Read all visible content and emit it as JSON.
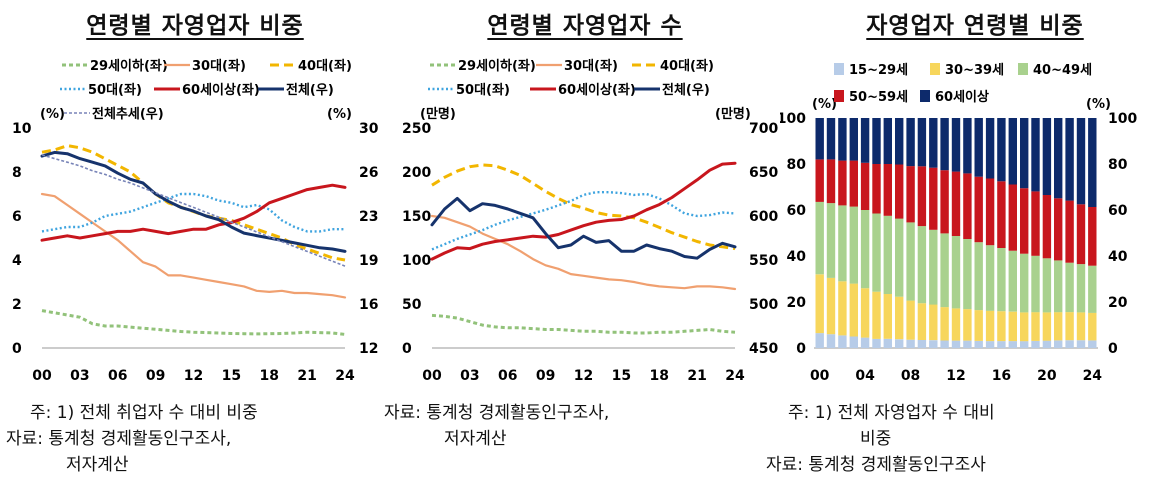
{
  "titles": [
    "연령별 자영업자 비중",
    "연령별 자영업자 수",
    "자영업자 연령별 비중"
  ],
  "notes": {
    "p1": [
      "주: 1) 전체 취업자 수 대비 비중",
      "자료: 통계청 경제활동인구조사,",
      "저자계산"
    ],
    "p2": [
      "자료: 통계청 경제활동인구조사,",
      "저자계산"
    ],
    "p3": [
      "주: 1) 전체 자영업자 수 대비",
      "비중",
      "자료: 통계청 경제활동인구조사"
    ]
  },
  "colors": {
    "a29": "#92c27a",
    "a30": "#f0a070",
    "a40": "#f2b600",
    "a50": "#3fa4df",
    "a60": "#c8161d",
    "total": "#16336c",
    "trend": "#7884b8",
    "s15": "#b7cce8",
    "s30": "#f7d65c",
    "s40": "#a9d18e",
    "s50": "#c8161d",
    "s60": "#0d2a6b"
  },
  "chart_data": [
    {
      "type": "line",
      "x": [
        0,
        1,
        2,
        3,
        4,
        5,
        6,
        7,
        8,
        9,
        10,
        11,
        12,
        13,
        14,
        15,
        16,
        17,
        18,
        19,
        20,
        21,
        22,
        23,
        24
      ],
      "xticks": [
        "00",
        "03",
        "06",
        "09",
        "12",
        "15",
        "18",
        "21",
        "24"
      ],
      "left_axis": {
        "unit": "(%)",
        "ylim": [
          0,
          10
        ],
        "ticks": [
          "0",
          "2",
          "4",
          "6",
          "8",
          "10"
        ]
      },
      "right_axis": {
        "unit": "(%)",
        "ylim": [
          12,
          30
        ],
        "ticks": [
          "12",
          "16",
          "19",
          "23",
          "26",
          "30"
        ]
      },
      "legend": [
        "29세이하(좌)",
        "30대(좌)",
        "40대(좌)",
        "50대(좌)",
        "60세이상(좌)",
        "전체(우)",
        "전체추세(우)"
      ],
      "series": [
        {
          "name": "29세이하(좌)",
          "axis": "left",
          "values": [
            1.7,
            1.6,
            1.5,
            1.4,
            1.1,
            1.0,
            1.0,
            0.95,
            0.9,
            0.85,
            0.8,
            0.75,
            0.72,
            0.7,
            0.68,
            0.66,
            0.65,
            0.64,
            0.65,
            0.66,
            0.68,
            0.72,
            0.7,
            0.68,
            0.62
          ]
        },
        {
          "name": "30대(좌)",
          "axis": "left",
          "values": [
            7.0,
            6.9,
            6.5,
            6.1,
            5.7,
            5.3,
            4.9,
            4.4,
            3.9,
            3.7,
            3.3,
            3.3,
            3.2,
            3.1,
            3.0,
            2.9,
            2.8,
            2.6,
            2.55,
            2.6,
            2.5,
            2.5,
            2.45,
            2.4,
            2.3
          ]
        },
        {
          "name": "40대(좌)",
          "axis": "left",
          "values": [
            8.9,
            9.0,
            9.2,
            9.1,
            8.9,
            8.6,
            8.3,
            8.0,
            7.5,
            7.0,
            6.6,
            6.4,
            6.2,
            6.0,
            5.9,
            5.8,
            5.6,
            5.4,
            5.2,
            5.0,
            4.7,
            4.5,
            4.3,
            4.1,
            4.0
          ]
        },
        {
          "name": "50대(좌)",
          "axis": "left",
          "values": [
            5.3,
            5.4,
            5.5,
            5.5,
            5.7,
            6.0,
            6.1,
            6.2,
            6.4,
            6.6,
            6.8,
            7.0,
            7.0,
            6.9,
            6.7,
            6.6,
            6.4,
            6.5,
            6.3,
            5.8,
            5.5,
            5.3,
            5.3,
            5.4,
            5.4
          ]
        },
        {
          "name": "60세이상(좌)",
          "axis": "left",
          "values": [
            4.9,
            5.0,
            5.1,
            5.0,
            5.1,
            5.2,
            5.3,
            5.3,
            5.4,
            5.3,
            5.2,
            5.3,
            5.4,
            5.4,
            5.6,
            5.7,
            5.9,
            6.2,
            6.6,
            6.8,
            7.0,
            7.2,
            7.3,
            7.4,
            7.3
          ]
        },
        {
          "name": "전체(우)",
          "axis": "right",
          "values": [
            27.7,
            28.0,
            27.9,
            27.5,
            27.2,
            26.9,
            26.3,
            25.8,
            25.5,
            24.6,
            24.0,
            23.5,
            23.2,
            22.8,
            22.5,
            21.9,
            21.4,
            21.2,
            21.0,
            20.8,
            20.6,
            20.4,
            20.2,
            20.1,
            19.9
          ]
        },
        {
          "name": "전체추세(우)",
          "axis": "right",
          "values": [
            27.8,
            27.5,
            27.2,
            26.9,
            26.5,
            26.2,
            25.8,
            25.5,
            25.1,
            24.7,
            24.3,
            23.9,
            23.5,
            23.1,
            22.7,
            22.3,
            21.9,
            21.5,
            21.1,
            20.7,
            20.3,
            19.9,
            19.5,
            19.1,
            18.7
          ]
        }
      ]
    },
    {
      "type": "line",
      "x": [
        0,
        1,
        2,
        3,
        4,
        5,
        6,
        7,
        8,
        9,
        10,
        11,
        12,
        13,
        14,
        15,
        16,
        17,
        18,
        19,
        20,
        21,
        22,
        23,
        24
      ],
      "xticks": [
        "00",
        "03",
        "06",
        "09",
        "12",
        "15",
        "18",
        "21",
        "24"
      ],
      "left_axis": {
        "unit": "(만명)",
        "ylim": [
          0,
          250
        ],
        "ticks": [
          "0",
          "50",
          "100",
          "150",
          "200",
          "250"
        ]
      },
      "right_axis": {
        "unit": "(만명)",
        "ylim": [
          450,
          700
        ],
        "ticks": [
          "450",
          "500",
          "550",
          "600",
          "650",
          "700"
        ]
      },
      "legend": [
        "29세이하(좌)",
        "30대(좌)",
        "40대(좌)",
        "50대(좌)",
        "60세이상(좌)",
        "전체(우)"
      ],
      "series": [
        {
          "name": "29세이하(좌)",
          "axis": "left",
          "values": [
            37,
            36,
            34,
            30,
            26,
            24,
            23,
            23,
            22,
            21,
            21,
            20,
            19,
            19,
            18,
            18,
            17,
            17,
            18,
            18,
            19,
            20,
            21,
            19,
            18
          ]
        },
        {
          "name": "30대(좌)",
          "axis": "left",
          "values": [
            150,
            148,
            143,
            138,
            130,
            124,
            118,
            110,
            101,
            94,
            90,
            84,
            82,
            80,
            78,
            77,
            75,
            72,
            70,
            69,
            68,
            70,
            70,
            69,
            67
          ]
        },
        {
          "name": "40대(좌)",
          "axis": "left",
          "values": [
            185,
            194,
            201,
            206,
            208,
            207,
            202,
            196,
            187,
            178,
            170,
            163,
            159,
            154,
            151,
            150,
            148,
            143,
            137,
            131,
            126,
            121,
            117,
            115,
            113
          ]
        },
        {
          "name": "50대(좌)",
          "axis": "left",
          "values": [
            112,
            118,
            124,
            129,
            134,
            140,
            145,
            149,
            153,
            157,
            162,
            167,
            174,
            177,
            177,
            176,
            174,
            175,
            170,
            162,
            153,
            150,
            151,
            154,
            153
          ]
        },
        {
          "name": "60세이상(좌)",
          "axis": "left",
          "values": [
            101,
            108,
            114,
            113,
            118,
            121,
            123,
            125,
            127,
            126,
            129,
            134,
            139,
            143,
            145,
            146,
            150,
            157,
            163,
            171,
            181,
            191,
            202,
            209,
            210
          ]
        },
        {
          "name": "전체(우)",
          "axis": "right",
          "values": [
            590,
            608,
            620,
            606,
            614,
            612,
            608,
            603,
            598,
            580,
            564,
            567,
            577,
            570,
            572,
            560,
            560,
            567,
            563,
            560,
            554,
            552,
            562,
            569,
            565
          ]
        }
      ]
    },
    {
      "type": "bar",
      "stacked": true,
      "x": [
        0,
        1,
        2,
        3,
        4,
        5,
        6,
        7,
        8,
        9,
        10,
        11,
        12,
        13,
        14,
        15,
        16,
        17,
        18,
        19,
        20,
        21,
        22,
        23,
        24
      ],
      "xticks": [
        "00",
        "04",
        "08",
        "12",
        "16",
        "20",
        "24"
      ],
      "left_axis": {
        "unit": "(%)",
        "ylim": [
          0,
          100
        ],
        "ticks": [
          "0",
          "20",
          "40",
          "60",
          "80",
          "100"
        ]
      },
      "right_axis": {
        "unit": "(%)",
        "ylim": [
          0,
          100
        ],
        "ticks": [
          "0",
          "20",
          "40",
          "60",
          "80",
          "100"
        ]
      },
      "legend": [
        "15~29세",
        "30~39세",
        "40~49세",
        "50~59세",
        "60세이상"
      ],
      "series": [
        {
          "name": "15~29세",
          "values": [
            6.5,
            6.0,
            5.5,
            5.0,
            4.5,
            4.0,
            4.0,
            3.8,
            3.6,
            3.5,
            3.4,
            3.3,
            3.2,
            3.2,
            3.1,
            3.0,
            3.0,
            3.0,
            3.0,
            3.1,
            3.2,
            3.3,
            3.4,
            3.4,
            3.3
          ]
        },
        {
          "name": "30~39세",
          "values": [
            25.5,
            24.5,
            23.5,
            23.0,
            21.5,
            20.5,
            19.5,
            18.5,
            17.0,
            16.0,
            15.5,
            14.5,
            14.0,
            13.7,
            13.4,
            13.2,
            13.0,
            12.8,
            12.5,
            12.5,
            12.3,
            12.3,
            12.2,
            12.1,
            12.0
          ]
        },
        {
          "name": "40~49세",
          "values": [
            31.5,
            32.5,
            33.0,
            33.5,
            34.0,
            34.0,
            34.0,
            34.0,
            34.0,
            33.5,
            32.5,
            32.0,
            31.5,
            30.5,
            29.5,
            28.5,
            27.5,
            26.5,
            25.5,
            24.5,
            23.5,
            22.5,
            21.5,
            21.0,
            20.5
          ]
        },
        {
          "name": "50~59세",
          "values": [
            18.5,
            19.0,
            19.5,
            20.0,
            20.5,
            21.5,
            22.5,
            23.5,
            24.5,
            26.0,
            27.0,
            27.5,
            28.0,
            28.5,
            28.5,
            29.0,
            29.0,
            28.8,
            28.5,
            28.0,
            27.5,
            27.0,
            27.0,
            26.0,
            25.5
          ]
        },
        {
          "name": "60세이상",
          "values": [
            18.0,
            18.0,
            18.5,
            18.5,
            19.5,
            20.0,
            20.0,
            20.2,
            20.9,
            21.0,
            21.6,
            22.7,
            23.3,
            24.1,
            25.5,
            26.3,
            27.5,
            28.9,
            30.5,
            31.9,
            33.5,
            34.9,
            35.9,
            37.5,
            38.7
          ]
        }
      ]
    }
  ]
}
